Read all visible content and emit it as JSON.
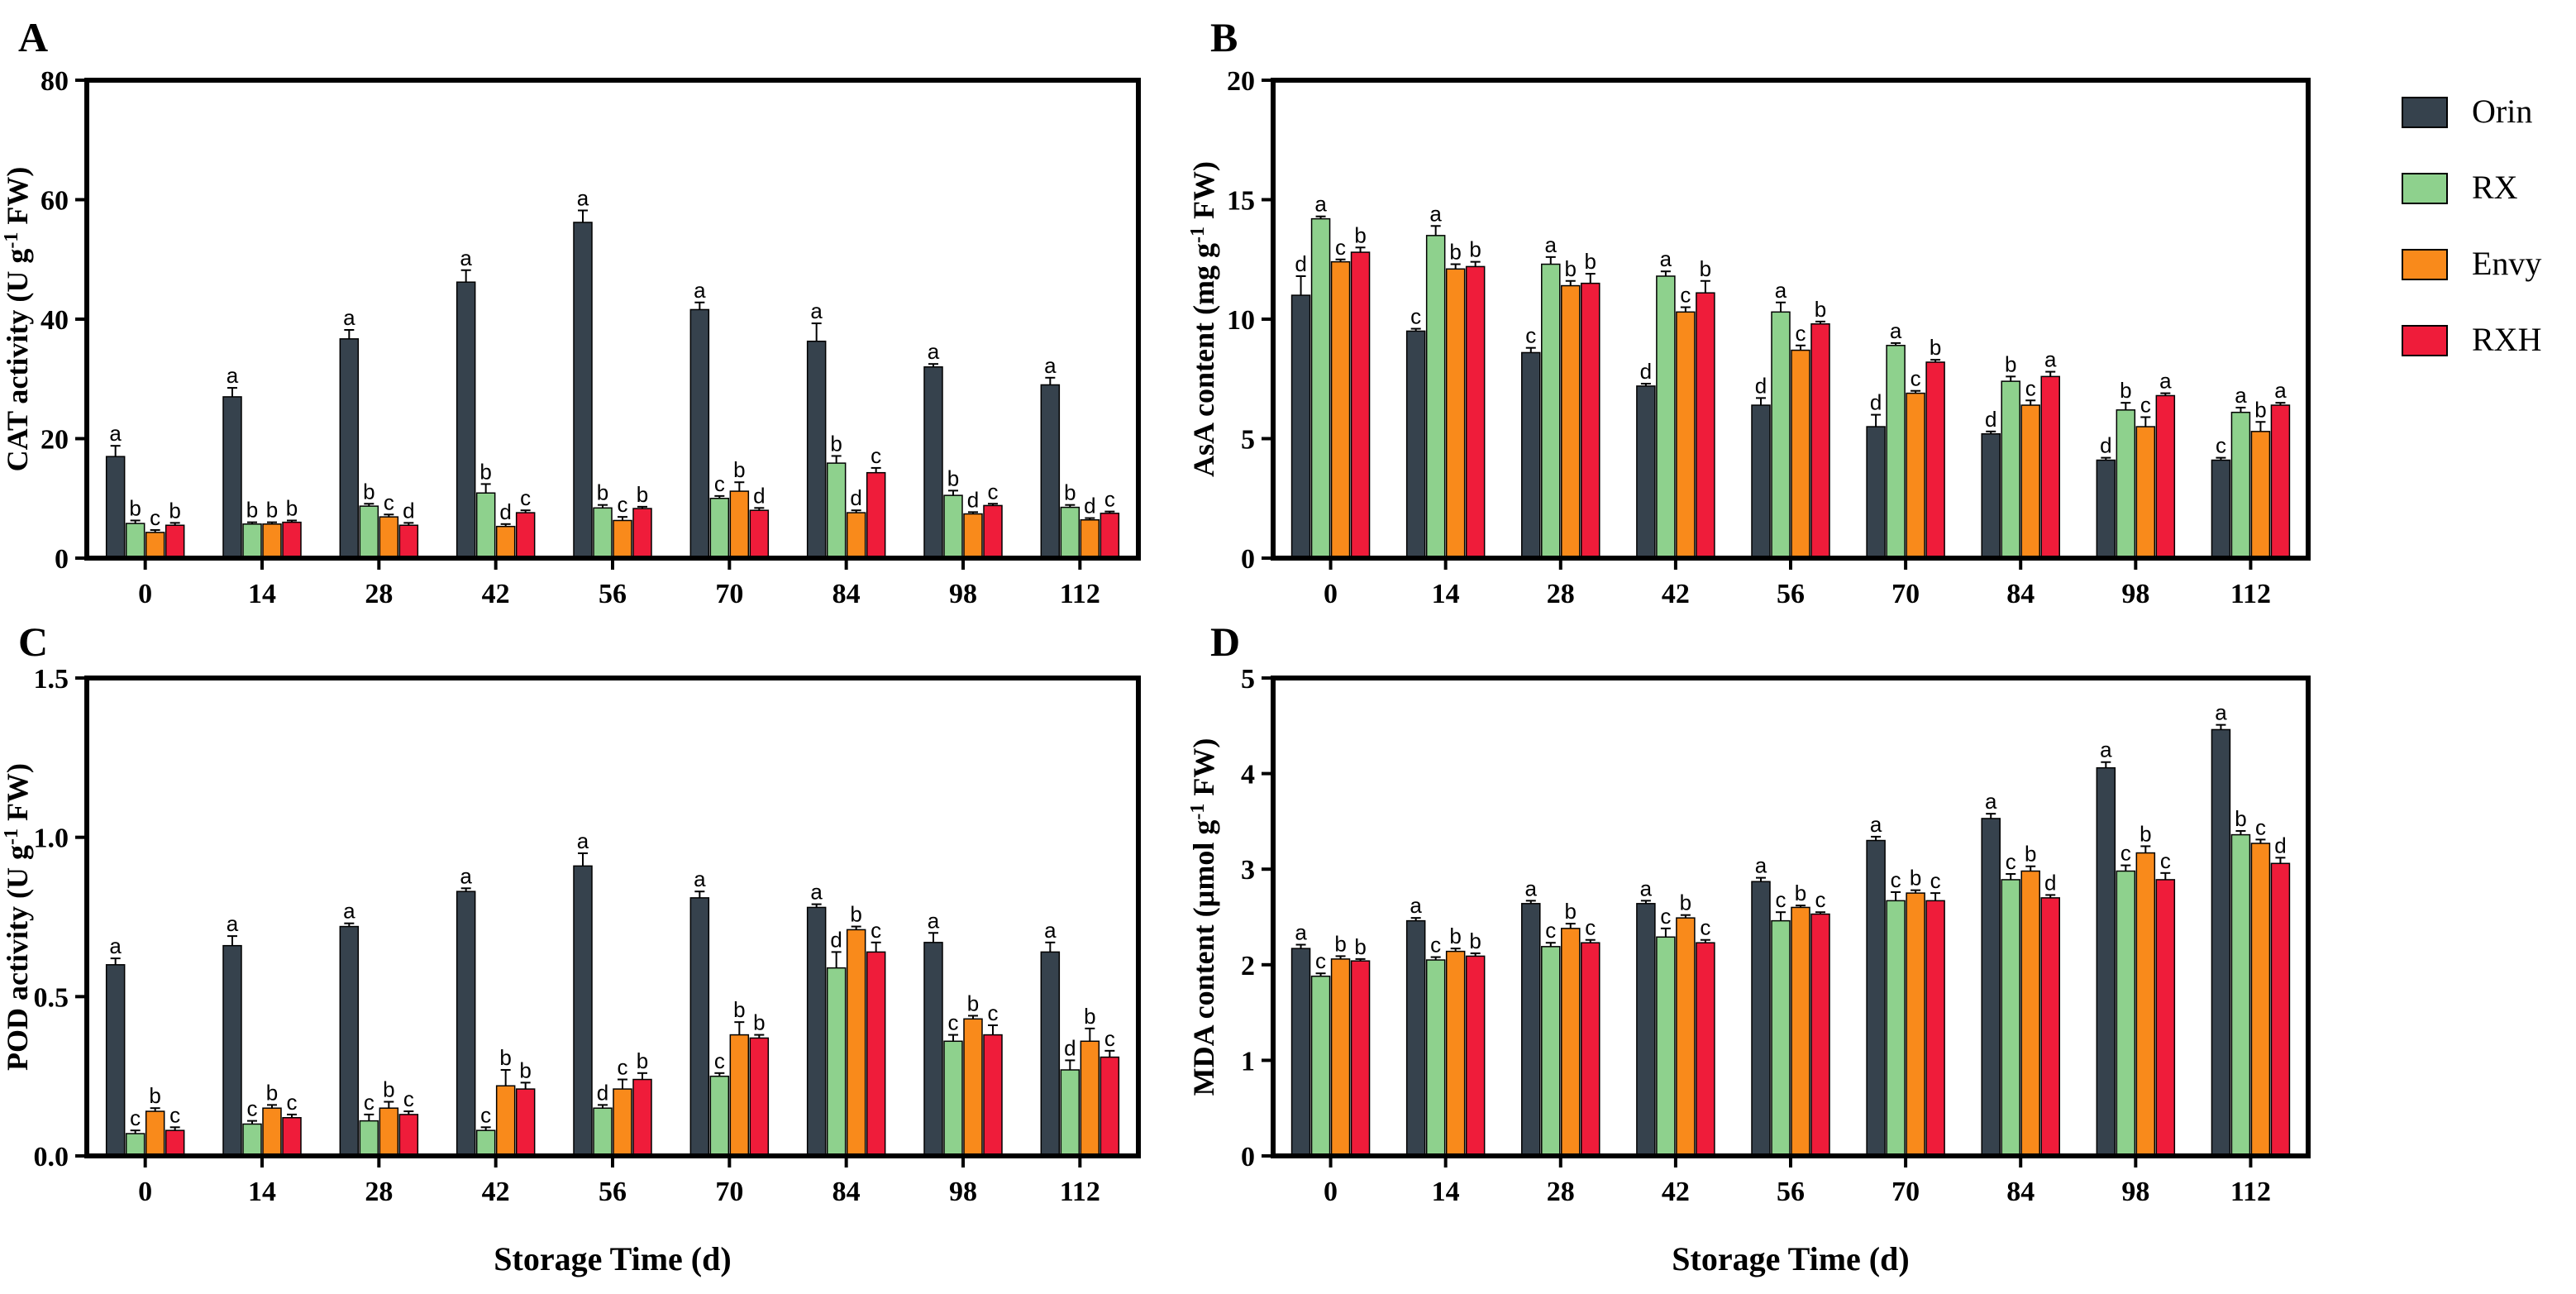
{
  "legend": [
    "Orin",
    "RX",
    "Envy",
    "RXH"
  ],
  "colors": {
    "Orin": "#36424d",
    "RX": "#8ed18d",
    "Envy": "#f98a1b",
    "RXH": "#ef1c3a"
  },
  "chart_data": [
    {
      "type": "bar",
      "panel": "A",
      "ylabel": "CAT activity (U g-1 FW)",
      "ylabel_parts": {
        "pre": "CAT activity (U g",
        "sup": "-1",
        "post": " FW)"
      },
      "xlabel": "",
      "ylim": [
        0,
        80
      ],
      "yticks": [
        0,
        20,
        40,
        60,
        80
      ],
      "ytick_labels": [
        "0",
        "20",
        "40",
        "60",
        "80"
      ],
      "categories": [
        "0",
        "14",
        "28",
        "42",
        "56",
        "70",
        "84",
        "98",
        "112"
      ],
      "series": [
        {
          "name": "Orin",
          "values": [
            17.0,
            27.0,
            36.7,
            46.2,
            56.2,
            41.6,
            36.3,
            32.0,
            29.0
          ],
          "err": [
            1.8,
            1.5,
            1.5,
            2.0,
            2.0,
            1.2,
            3.0,
            0.5,
            1.2
          ],
          "labels": [
            "a",
            "a",
            "a",
            "a",
            "a",
            "a",
            "a",
            "a",
            "a"
          ]
        },
        {
          "name": "RX",
          "values": [
            5.8,
            5.7,
            8.7,
            10.9,
            8.4,
            10.0,
            15.9,
            10.5,
            8.5
          ],
          "err": [
            0.5,
            0.3,
            0.4,
            1.5,
            0.5,
            0.4,
            1.2,
            0.8,
            0.4
          ],
          "labels": [
            "b",
            "b",
            "b",
            "b",
            "b",
            "c",
            "b",
            "b",
            "b"
          ]
        },
        {
          "name": "Envy",
          "values": [
            4.3,
            5.7,
            6.9,
            5.3,
            6.3,
            11.2,
            7.6,
            7.4,
            6.4
          ],
          "err": [
            0.4,
            0.3,
            0.4,
            0.4,
            0.6,
            1.5,
            0.4,
            0.3,
            0.3
          ],
          "labels": [
            "c",
            "b",
            "c",
            "d",
            "c",
            "b",
            "d",
            "d",
            "d"
          ]
        },
        {
          "name": "RXH",
          "values": [
            5.5,
            6.0,
            5.5,
            7.6,
            8.3,
            8.0,
            14.3,
            8.8,
            7.5
          ],
          "err": [
            0.4,
            0.3,
            0.4,
            0.4,
            0.3,
            0.4,
            0.8,
            0.3,
            0.3
          ],
          "labels": [
            "b",
            "b",
            "d",
            "c",
            "b",
            "d",
            "c",
            "c",
            "c"
          ]
        }
      ]
    },
    {
      "type": "bar",
      "panel": "B",
      "ylabel": "AsA content (mg g-1 FW)",
      "ylabel_parts": {
        "pre": "AsA content (mg g",
        "sup": "-1",
        "post": " FW)"
      },
      "xlabel": "",
      "ylim": [
        0,
        20
      ],
      "yticks": [
        0,
        5,
        10,
        15,
        20
      ],
      "ytick_labels": [
        "0",
        "5",
        "10",
        "15",
        "20"
      ],
      "categories": [
        "0",
        "14",
        "28",
        "42",
        "56",
        "70",
        "84",
        "98",
        "112"
      ],
      "series": [
        {
          "name": "Orin",
          "values": [
            11.0,
            9.5,
            8.6,
            7.2,
            6.4,
            5.5,
            5.2,
            4.1,
            4.1
          ],
          "err": [
            0.8,
            0.1,
            0.2,
            0.1,
            0.3,
            0.5,
            0.1,
            0.1,
            0.1
          ],
          "labels": [
            "d",
            "c",
            "c",
            "d",
            "d",
            "d",
            "d",
            "d",
            "c"
          ]
        },
        {
          "name": "RX",
          "values": [
            14.2,
            13.5,
            12.3,
            11.8,
            10.3,
            8.9,
            7.4,
            6.2,
            6.1
          ],
          "err": [
            0.1,
            0.4,
            0.3,
            0.2,
            0.4,
            0.1,
            0.2,
            0.3,
            0.2
          ],
          "labels": [
            "a",
            "a",
            "a",
            "a",
            "a",
            "a",
            "b",
            "b",
            "a"
          ]
        },
        {
          "name": "Envy",
          "values": [
            12.4,
            12.1,
            11.4,
            10.3,
            8.7,
            6.9,
            6.4,
            5.5,
            5.3
          ],
          "err": [
            0.1,
            0.2,
            0.2,
            0.2,
            0.2,
            0.1,
            0.2,
            0.4,
            0.4
          ],
          "labels": [
            "c",
            "b",
            "b",
            "c",
            "c",
            "c",
            "c",
            "c",
            "b"
          ]
        },
        {
          "name": "RXH",
          "values": [
            12.8,
            12.2,
            11.5,
            11.1,
            9.8,
            8.2,
            7.6,
            6.8,
            6.4
          ],
          "err": [
            0.2,
            0.2,
            0.4,
            0.5,
            0.1,
            0.1,
            0.2,
            0.1,
            0.1
          ],
          "labels": [
            "b",
            "b",
            "b",
            "b",
            "b",
            "b",
            "a",
            "a",
            "a"
          ]
        }
      ]
    },
    {
      "type": "bar",
      "panel": "C",
      "ylabel": "POD activity (U g-1 FW)",
      "ylabel_parts": {
        "pre": "POD activity (U g",
        "sup": "-1",
        "post": " FW)"
      },
      "xlabel": "Storage Time (d)",
      "ylim": [
        0,
        1.5
      ],
      "yticks": [
        0,
        0.5,
        1.0,
        1.5
      ],
      "ytick_labels": [
        "0.0",
        "0.5",
        "1.0",
        "1.5"
      ],
      "categories": [
        "0",
        "14",
        "28",
        "42",
        "56",
        "70",
        "84",
        "98",
        "112"
      ],
      "series": [
        {
          "name": "Orin",
          "values": [
            0.6,
            0.66,
            0.72,
            0.83,
            0.91,
            0.81,
            0.78,
            0.67,
            0.64
          ],
          "err": [
            0.02,
            0.03,
            0.01,
            0.01,
            0.04,
            0.02,
            0.01,
            0.03,
            0.03
          ],
          "labels": [
            "a",
            "a",
            "a",
            "a",
            "a",
            "a",
            "a",
            "a",
            "a"
          ]
        },
        {
          "name": "RX",
          "values": [
            0.07,
            0.1,
            0.11,
            0.08,
            0.15,
            0.25,
            0.59,
            0.36,
            0.27
          ],
          "err": [
            0.01,
            0.01,
            0.02,
            0.01,
            0.01,
            0.01,
            0.05,
            0.02,
            0.03
          ],
          "labels": [
            "c",
            "c",
            "c",
            "c",
            "d",
            "c",
            "d",
            "c",
            "d"
          ]
        },
        {
          "name": "Envy",
          "values": [
            0.14,
            0.15,
            0.15,
            0.22,
            0.21,
            0.38,
            0.71,
            0.43,
            0.36
          ],
          "err": [
            0.01,
            0.01,
            0.02,
            0.05,
            0.03,
            0.04,
            0.01,
            0.01,
            0.04
          ],
          "labels": [
            "b",
            "b",
            "b",
            "b",
            "c",
            "b",
            "b",
            "b",
            "b"
          ]
        },
        {
          "name": "RXH",
          "values": [
            0.08,
            0.12,
            0.13,
            0.21,
            0.24,
            0.37,
            0.64,
            0.38,
            0.31
          ],
          "err": [
            0.01,
            0.01,
            0.01,
            0.02,
            0.02,
            0.01,
            0.03,
            0.03,
            0.02
          ],
          "labels": [
            "c",
            "c",
            "c",
            "b",
            "b",
            "b",
            "c",
            "c",
            "c"
          ]
        }
      ]
    },
    {
      "type": "bar",
      "panel": "D",
      "ylabel": "MDA content (µmol g-1 FW)",
      "ylabel_parts": {
        "pre": "MDA content (µmol g",
        "sup": "-1",
        "post": " FW)"
      },
      "xlabel": "Storage Time (d)",
      "ylim": [
        0,
        5
      ],
      "yticks": [
        0,
        1,
        2,
        3,
        4,
        5
      ],
      "ytick_labels": [
        "0",
        "1",
        "2",
        "3",
        "4",
        "5"
      ],
      "categories": [
        "0",
        "14",
        "28",
        "42",
        "56",
        "70",
        "84",
        "98",
        "112"
      ],
      "series": [
        {
          "name": "Orin",
          "values": [
            2.17,
            2.46,
            2.64,
            2.64,
            2.87,
            3.3,
            3.53,
            4.06,
            4.46
          ],
          "err": [
            0.04,
            0.03,
            0.03,
            0.03,
            0.04,
            0.04,
            0.05,
            0.06,
            0.05
          ],
          "labels": [
            "a",
            "a",
            "a",
            "a",
            "a",
            "a",
            "a",
            "a",
            "a"
          ]
        },
        {
          "name": "RX",
          "values": [
            1.88,
            2.05,
            2.19,
            2.29,
            2.46,
            2.67,
            2.89,
            2.98,
            3.36
          ],
          "err": [
            0.03,
            0.03,
            0.04,
            0.09,
            0.09,
            0.09,
            0.06,
            0.06,
            0.04
          ],
          "labels": [
            "c",
            "c",
            "c",
            "c",
            "c",
            "c",
            "c",
            "c",
            "b"
          ]
        },
        {
          "name": "Envy",
          "values": [
            2.06,
            2.14,
            2.38,
            2.49,
            2.6,
            2.75,
            2.98,
            3.17,
            3.27
          ],
          "err": [
            0.03,
            0.03,
            0.05,
            0.03,
            0.02,
            0.03,
            0.05,
            0.07,
            0.04
          ],
          "labels": [
            "b",
            "b",
            "b",
            "b",
            "b",
            "b",
            "b",
            "b",
            "c"
          ]
        },
        {
          "name": "RXH",
          "values": [
            2.04,
            2.09,
            2.23,
            2.23,
            2.53,
            2.67,
            2.7,
            2.89,
            3.06
          ],
          "err": [
            0.02,
            0.03,
            0.03,
            0.03,
            0.02,
            0.08,
            0.03,
            0.07,
            0.06
          ],
          "labels": [
            "b",
            "b",
            "c",
            "c",
            "c",
            "c",
            "d",
            "c",
            "d"
          ]
        }
      ]
    }
  ]
}
